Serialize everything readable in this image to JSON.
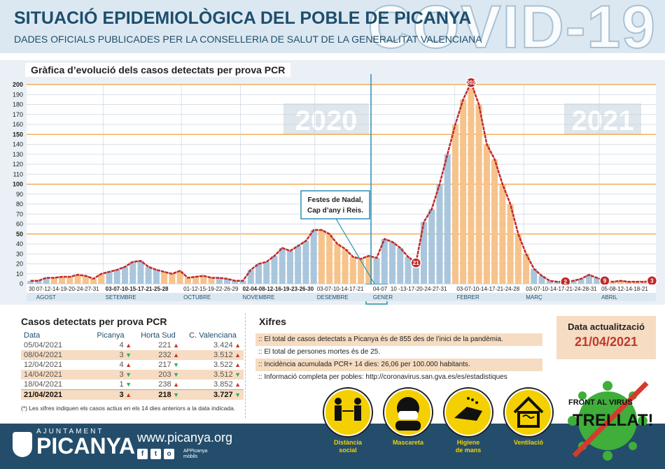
{
  "header": {
    "title": "SITUACIÓ EPIDEMIOLÒGICA DEL POBLE DE PICANYA",
    "subtitle": "DADES OFICIALS PUBLICADES PER LA CONSELLERIA DE SALUT DE LA GENERALITAT VALENCIANA",
    "big_text": "COVID-19"
  },
  "chart_data": {
    "type": "area",
    "title": "Gràfica d’evolució dels casos detectats per prova PCR",
    "ylim": [
      0,
      200
    ],
    "yticks": [
      0,
      10,
      20,
      30,
      40,
      50,
      60,
      70,
      80,
      90,
      100,
      110,
      120,
      130,
      140,
      150,
      160,
      170,
      180,
      190,
      200
    ],
    "year_labels": [
      "2020",
      "2021"
    ],
    "series": [
      {
        "values": [
          3,
          3,
          6,
          6,
          7,
          7,
          9,
          8,
          5,
          10,
          12,
          14,
          17,
          22,
          23,
          17,
          14,
          12,
          10,
          13,
          6,
          7,
          8,
          6,
          6,
          5,
          3,
          3,
          14,
          20,
          22,
          28,
          36,
          33,
          38,
          43,
          54,
          54,
          50,
          40,
          35,
          27,
          25,
          28,
          26,
          45,
          42,
          36,
          27,
          21,
          62,
          75,
          100,
          130,
          160,
          185,
          202,
          180,
          140,
          125,
          100,
          80,
          50,
          30,
          15,
          8,
          3,
          2,
          2,
          3,
          5,
          9,
          6,
          3,
          2,
          3,
          2,
          2,
          2,
          3
        ]
      }
    ],
    "annotations": [
      {
        "text": "202"
      },
      {
        "text": "21"
      },
      {
        "text": "2"
      },
      {
        "text": "9"
      },
      {
        "text": "3"
      }
    ],
    "callout": [
      "Festes de Nadal,",
      "Cap d’any i Reis."
    ],
    "month_ticks": [
      {
        "days": "30",
        "month": ""
      },
      {
        "days": "07-12-14-19-20-24-27-31",
        "month": "AGOST"
      },
      {
        "days": "03-07-10-15-17-21-25-28",
        "month": "SETEMBRE"
      },
      {
        "days": "01-12-15-19-22-26-29",
        "month": "OCTUBRE"
      },
      {
        "days": "02-04-08-12-16-19-23-26-30",
        "month": "NOVEMBRE"
      },
      {
        "days": "03-07-10-14-17-21",
        "month": "DESEMBRE"
      },
      {
        "days": "04-07",
        "month": "GENER"
      },
      {
        "days": "10 -13-17-20-24-27-31",
        "month": ""
      },
      {
        "days": "03-07-10-14-17-21-24-28",
        "month": "FEBRER"
      },
      {
        "days": "03-07-10-14-17-21-24-28-31",
        "month": "MARÇ"
      },
      {
        "days": "05-08-12-14-18-21",
        "month": "ABRIL"
      }
    ],
    "colors": {
      "line": "#c0292b",
      "area_orange": "#f6c38b",
      "area_blue": "#a9c6dc",
      "orange_rule": "#f0a03c"
    }
  },
  "cases_table": {
    "title": "Casos detectats per prova PCR",
    "headers": [
      "Data",
      "Picanya",
      "Horta Sud",
      "C. Valenciana"
    ],
    "rows": [
      {
        "date": "05/04/2021",
        "picanya": "4",
        "p_dir": "up",
        "horta": "221",
        "h_dir": "up",
        "cv": "3.424",
        "c_dir": "up"
      },
      {
        "date": "08/04/2021",
        "picanya": "3",
        "p_dir": "down",
        "horta": "232",
        "h_dir": "up",
        "cv": "3.512",
        "c_dir": "up"
      },
      {
        "date": "12/04/2021",
        "picanya": "4",
        "p_dir": "up",
        "horta": "217",
        "h_dir": "down",
        "cv": "3.522",
        "c_dir": "up"
      },
      {
        "date": "14/04/2021",
        "picanya": "3",
        "p_dir": "down",
        "horta": "203",
        "h_dir": "down",
        "cv": "3.512",
        "c_dir": "down"
      },
      {
        "date": "18/04/2021",
        "picanya": "1",
        "p_dir": "down",
        "horta": "238",
        "h_dir": "up",
        "cv": "3.852",
        "c_dir": "up"
      },
      {
        "date": "21/04/2021",
        "picanya": "3",
        "p_dir": "up",
        "horta": "218",
        "h_dir": "down",
        "cv": "3.727",
        "c_dir": "down"
      }
    ],
    "note": "(*) Les xifres indiquen els casos actius en els 14 dies anteriors a la data indicada."
  },
  "xifres": {
    "title": "Xifres",
    "lines": [
      ":: El total de casos detectats a Picanya és de 855 des de l’inici de la pandèmia.",
      ":: El total de persones mortes és de 25.",
      ":: Incidència acumulada PCR+ 14 dies: 26,06 per 100.000 habitants.",
      ":: Informació completa per pobles: http://coronavirus.san.gva.es/es/estadistiques"
    ]
  },
  "update": {
    "label": "Data actualització",
    "date": "21/04/2021"
  },
  "footer": {
    "ajuntament": "AJUNTAMENT",
    "town": "PICANYA",
    "website": "www.picanya.org",
    "social": [
      "f",
      "t",
      "o"
    ],
    "app": [
      "APPicanya",
      "mòbils"
    ]
  },
  "measures": [
    {
      "label1": "Distància",
      "label2": "social",
      "icon": "distance-icon"
    },
    {
      "label1": "Mascareta",
      "label2": "",
      "icon": "mask-icon"
    },
    {
      "label1": "Higiene",
      "label2": "de mans",
      "icon": "hands-icon"
    },
    {
      "label1": "Ventilació",
      "label2": "",
      "icon": "house-icon"
    }
  ],
  "virus": {
    "line1": "FRONT AL VIRUS",
    "line2": "TRELLAT!"
  }
}
